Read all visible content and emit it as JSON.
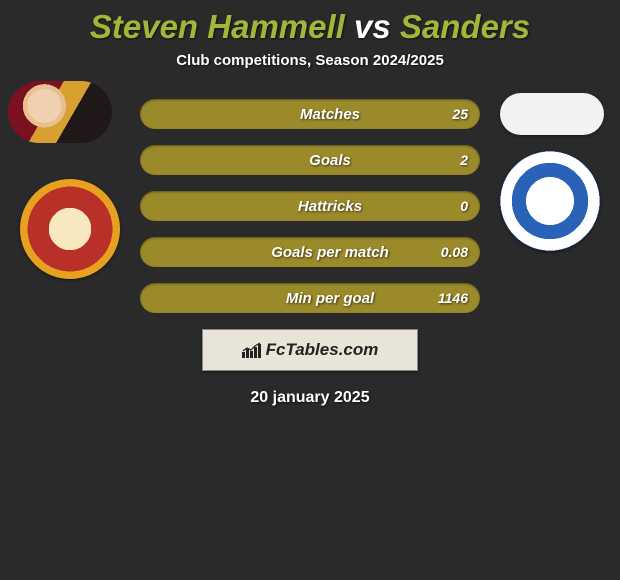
{
  "title": {
    "full_text": "Steven Hammell vs Sanders",
    "player1": "Steven Hammell",
    "vs": "vs",
    "player2": "Sanders",
    "color_players": "#9fb838",
    "color_vs": "#ffffff",
    "fontsize": 33
  },
  "subtitle": {
    "text": "Club competitions, Season 2024/2025",
    "color": "#ffffff",
    "fontsize": 15
  },
  "stats": {
    "bar_bg": "#9b8a2a",
    "label_color": "#ffffff",
    "value_color": "#ffffff",
    "label_fontsize": 15,
    "value_fontsize": 14,
    "rows": [
      {
        "label": "Matches",
        "value": "25"
      },
      {
        "label": "Goals",
        "value": "2"
      },
      {
        "label": "Hattricks",
        "value": "0"
      },
      {
        "label": "Goals per match",
        "value": "0.08"
      },
      {
        "label": "Min per goal",
        "value": "1146"
      }
    ]
  },
  "brand": {
    "text": "FcTables.com",
    "box_bg": "#e8e5d8",
    "text_color": "#222222",
    "fontsize": 17
  },
  "footer": {
    "date": "20 january 2025",
    "color": "#ffffff",
    "fontsize": 16
  },
  "background_color": "#2a2a2a"
}
